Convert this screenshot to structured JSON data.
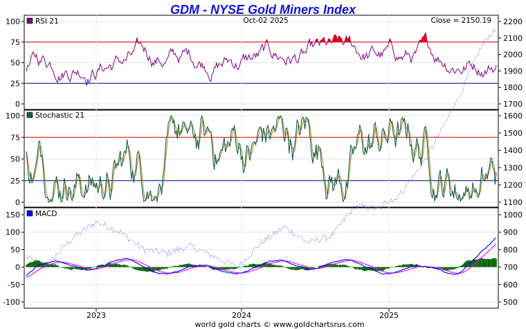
{
  "chart_data": {
    "type": "line",
    "title": "GDM - NYSE Gold Miners Index",
    "date_label": "Oct-02  2025",
    "close_label": "Close = 2150.19",
    "footer": "world gold charts © www.goldchartsrus.com",
    "x_labels": [
      "2023",
      "2024",
      "2025"
    ],
    "colors": {
      "rsi": "#800080",
      "rsi_over": "#e00000",
      "rsi_under": "#1010c0",
      "stoch_k": "#1a5c4a",
      "stoch_d": "#b08a2a",
      "macd": "#0000ff",
      "signal": "#ff00ff",
      "hist": "#006400",
      "price": "#6060ff",
      "upper_line": "#cc0000",
      "lower_line": "#000080",
      "title": "#1010e0"
    },
    "panels": [
      {
        "name": "RSI 21",
        "legend_color": "#800080",
        "left_ticks": [
          "100",
          "75",
          "50",
          "25",
          "0"
        ],
        "left_range": [
          0,
          100
        ],
        "hlines": [
          75,
          25
        ],
        "right_ticks": [
          "2200",
          "2100",
          "2000",
          "1900",
          "1800",
          "1700"
        ],
        "right_range": [
          1700,
          2200
        ]
      },
      {
        "name": "Stochastic 21",
        "legend_color": "#1a5c4a",
        "left_ticks": [
          "100",
          "75",
          "50",
          "25",
          "0"
        ],
        "left_range": [
          0,
          100
        ],
        "hlines": [
          75,
          25
        ],
        "right_ticks": [
          "1600",
          "1500",
          "1400",
          "1300",
          "1200",
          "1100"
        ],
        "right_range": [
          1100,
          1600
        ]
      },
      {
        "name": "MACD",
        "legend_color": "#0000ff",
        "left_ticks": [
          "150",
          "100",
          "50",
          "0",
          "-50",
          "-100"
        ],
        "left_range": [
          -100,
          150
        ],
        "hlines": [],
        "right_ticks": [
          "1000",
          "900",
          "800",
          "700",
          "600",
          "500"
        ],
        "right_range": [
          500,
          1000
        ]
      }
    ],
    "price_series": {
      "name": "GDM price (right axis)",
      "x_frac": [
        0.0,
        0.04,
        0.1,
        0.15,
        0.2,
        0.25,
        0.3,
        0.35,
        0.4,
        0.45,
        0.5,
        0.55,
        0.6,
        0.65,
        0.7,
        0.75,
        0.8,
        0.85,
        0.9,
        0.93,
        0.96,
        0.98,
        1.0
      ],
      "values": [
        760,
        700,
        870,
        960,
        900,
        800,
        780,
        820,
        760,
        700,
        840,
        930,
        840,
        880,
        1050,
        1030,
        1160,
        1350,
        1600,
        1800,
        2000,
        2100,
        2150
      ]
    }
  }
}
